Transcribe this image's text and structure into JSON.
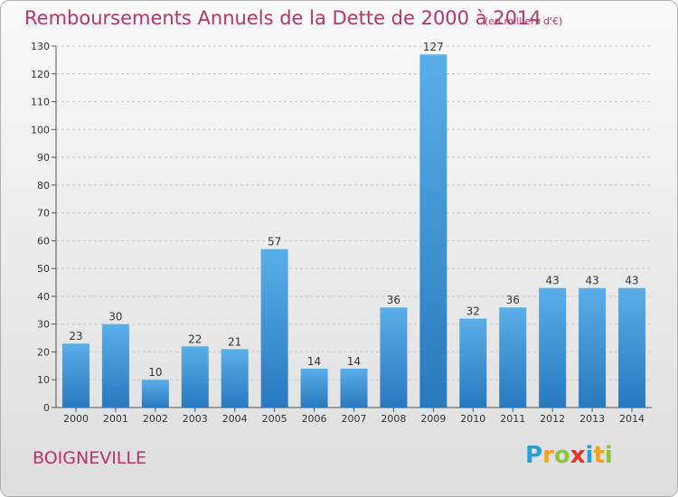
{
  "header": {
    "title": "Remboursements Annuels de la Dette de 2000 à 2014",
    "subtitle": "(en milliers d'€)"
  },
  "footer": {
    "commune": "BOIGNEVILLE",
    "logo_letters": [
      "P",
      "r",
      "o",
      "x",
      "i",
      "t",
      "i"
    ],
    "logo_colors": [
      "#2a9fd6",
      "#f7a11a",
      "#8bc53f",
      "#e8322b",
      "#2a9fd6",
      "#f7a11a",
      "#8bc53f"
    ]
  },
  "colors": {
    "bar_top": "#5aaee8",
    "bar_bottom": "#2879be",
    "text_accent": "#b8336a"
  },
  "chart_data": {
    "type": "bar",
    "title": "Remboursements Annuels de la Dette de 2000 à 2014",
    "subtitle": "(en milliers d'€)",
    "categories": [
      "2000",
      "2001",
      "2002",
      "2003",
      "2004",
      "2005",
      "2006",
      "2007",
      "2008",
      "2009",
      "2010",
      "2011",
      "2012",
      "2013",
      "2014"
    ],
    "values": [
      23,
      30,
      10,
      22,
      21,
      57,
      14,
      14,
      36,
      127,
      32,
      36,
      43,
      43,
      43
    ],
    "ylim": [
      0,
      130
    ],
    "yticks": [
      0,
      10,
      20,
      30,
      40,
      50,
      60,
      70,
      80,
      90,
      100,
      110,
      120,
      130
    ],
    "grid": true
  }
}
